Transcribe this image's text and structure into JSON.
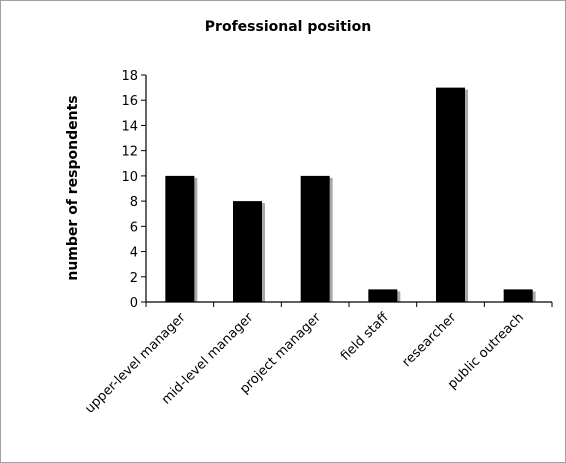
{
  "chart_data": {
    "type": "bar",
    "title": "Professional position",
    "xlabel": "",
    "ylabel": "number of respondents",
    "ylim": [
      0,
      18
    ],
    "ytick_step": 2,
    "grid": false,
    "legend": "none",
    "categories": [
      "upper-level manager",
      "mid-level manager",
      "project manager",
      "field staff",
      "researcher",
      "public outreach"
    ],
    "values": [
      10,
      8,
      10,
      1,
      17,
      1
    ],
    "colors": {
      "bar": "#000000",
      "shadow": "#a8a8a8",
      "axis": "#000000"
    }
  }
}
